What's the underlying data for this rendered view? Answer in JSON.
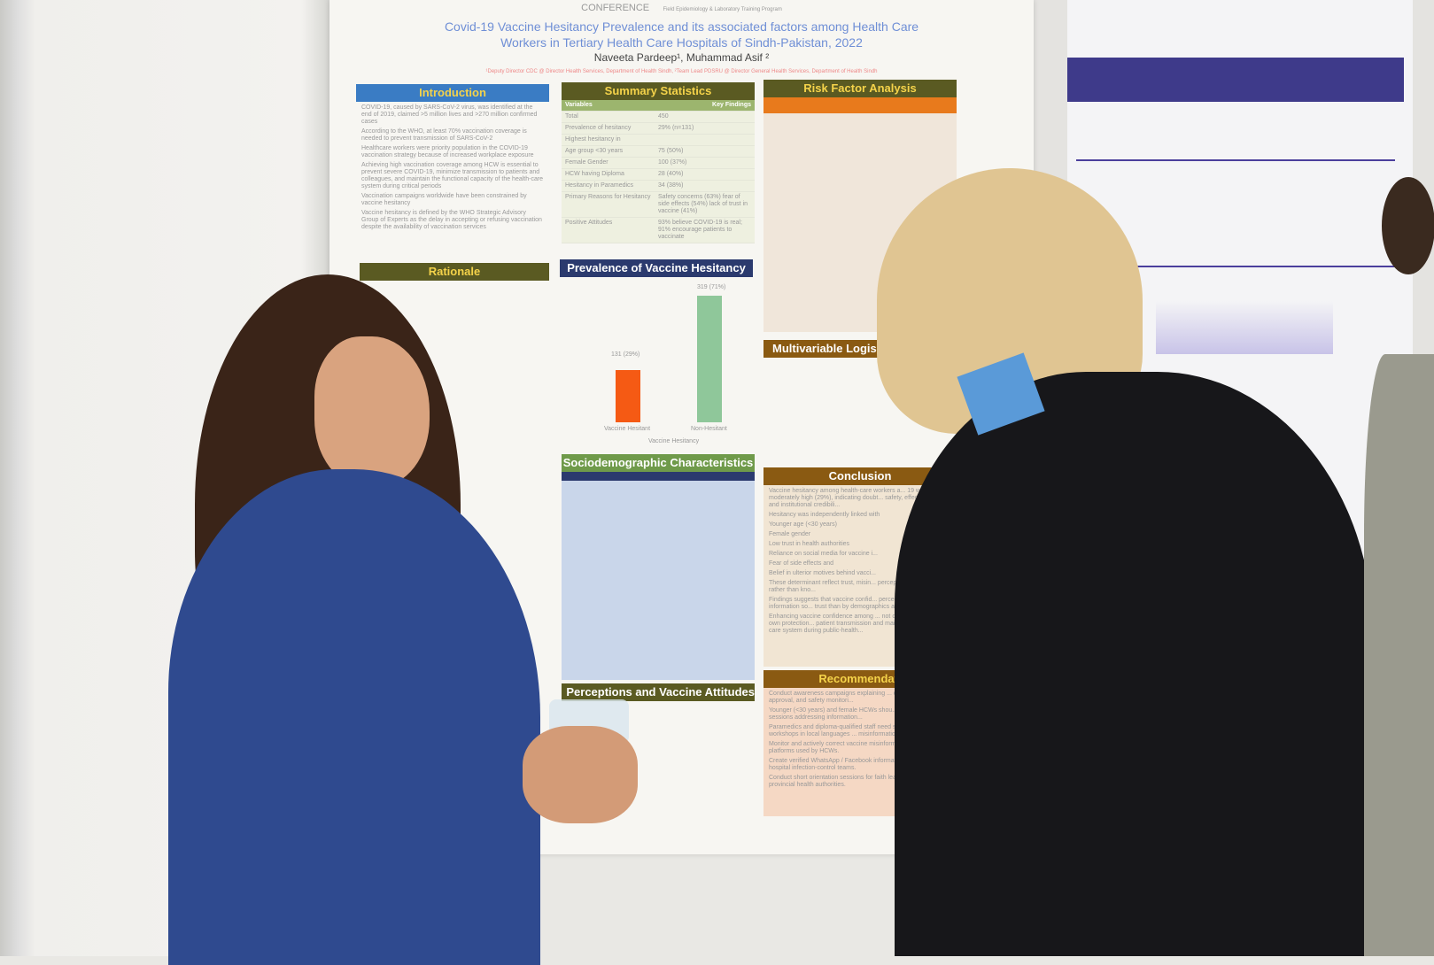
{
  "poster": {
    "logos": [
      "CONFERENCE",
      "Field Epidemiology & Laboratory Training Program"
    ],
    "title_line1": "Covid-19 Vaccine Hesitancy Prevalence and its associated factors among Health Care",
    "title_line2": "Workers in Tertiary Health Care Hospitals of Sindh-Pakistan, 2022",
    "authors": "Naveeta Pardeep¹, Muhammad Asif ²",
    "affiliations": "¹Deputy Director CDC @ Director Health Services, Department of Health Sindh, ²Team Lead PDSRU @ Director General Health Services, Department of Health Sindh",
    "introduction": {
      "heading": "Introduction",
      "bullets": [
        "COVID-19, caused by SARS-CoV-2 virus, was identified at the end of 2019, claimed >5 million lives and >270 million confirmed cases",
        "According to the WHO, at least 70% vaccination coverage is needed to prevent transmission of SARS-CoV-2",
        "Healthcare workers were priority population in the COVID-19 vaccination strategy because of increased workplace exposure",
        "Achieving high vaccination coverage among HCW is essential to prevent severe COVID-19, minimize transmission to patients and colleagues, and maintain the functional capacity of the health-care system during critical periods",
        "Vaccination campaigns worldwide have been constrained by vaccine hesitancy",
        "Vaccine hesitancy is defined by the WHO Strategic Advisory Group of Experts as the delay in accepting or refusing vaccination despite the availability of vaccination services"
      ]
    },
    "rationale": {
      "heading": "Rationale"
    },
    "summary": {
      "heading": "Summary Statistics",
      "col1": "Variables",
      "col2": "Key Findings",
      "rows": [
        [
          "Total",
          "450"
        ],
        [
          "Prevalence of hesitancy",
          "29% (n=131)"
        ],
        [
          "Highest hesitancy in",
          ""
        ],
        [
          "Age group <30 years",
          "75 (50%)"
        ],
        [
          "Female Gender",
          "100 (37%)"
        ],
        [
          "HCW having Diploma",
          "28 (40%)"
        ],
        [
          "Hesitancy in Paramedics",
          "34 (38%)"
        ],
        [
          "Primary Reasons for Hesitancy",
          "Safety concerns (63%) fear of side effects (54%) lack of trust in vaccine (41%)"
        ],
        [
          "Positive Attitudes",
          "93% believe COVID-19 is real; 91% encourage patients to vaccinate"
        ]
      ]
    },
    "prevalence": {
      "heading": "Prevalence of Vaccine Hesitancy",
      "xlabel": "Vaccine Hesitancy",
      "bars": [
        {
          "label": "Vaccine Hesitant",
          "value_label": "131 (29%)",
          "value": 131,
          "color": "#f55a14"
        },
        {
          "label": "Non-Hesitant",
          "value_label": "319 (71%)",
          "value": 319,
          "color": "#8fc79a"
        }
      ]
    },
    "sociodemographic": {
      "heading": "Sociodemographic Characteristics"
    },
    "perceptions": {
      "heading": "Perceptions and Vaccine Attitudes"
    },
    "risk": {
      "heading": "Risk Factor Analysis"
    },
    "multivariable": {
      "heading": "Multivariable Logis"
    },
    "conclusion": {
      "heading": "Conclusion",
      "bullets": [
        "Vaccine hesitancy among health-care workers a... 19 was moderately high (29%), indicating doubt... safety, effectiveness, and institutional credibili...",
        "Hesitancy was independently linked with",
        "Younger age (<30 years)",
        "Female gender",
        "Low trust in health authorities",
        "Reliance on social media for vaccine i...",
        "Fear of side effects and",
        "Belief in ulterior motives behind vacci...",
        "These determinant reflect trust, misin... perception dynamics, rather than kno...",
        "Findings suggests that vaccine confid... perceived credibility of information so... trust than by demographics alone.",
        "Enhancing vaccine confidence among ... not only critical for their own protection... patient transmission and maintaining t... health-care system during public-health..."
      ]
    },
    "recommendations": {
      "heading": "Recommendati",
      "bullets": [
        "Conduct awareness campaigns explaining ... development, approval, and safety monitori...",
        "Younger (<30 years) and female HCWs shou... educational sessions addressing information...",
        "Paramedics and diploma-qualified staff need s... vaccine-literacy workshops in local languages ... misinformation.",
        "Monitor and actively correct vaccine misinform... on social media platforms used by HCWs.",
        "Create verified WhatsApp / Facebook informat... managed by hospital infection-control teams.",
        "Conduct short orientation sessions for faith lea... collaboration with provincial health authorities."
      ]
    }
  },
  "colors": {
    "intro": "#3a7cc4",
    "olive": "#5a5a22",
    "green": "#6f9a4a",
    "brown": "#8a5a12",
    "orange": "#e87a1c",
    "navy": "#2b3a6e"
  }
}
